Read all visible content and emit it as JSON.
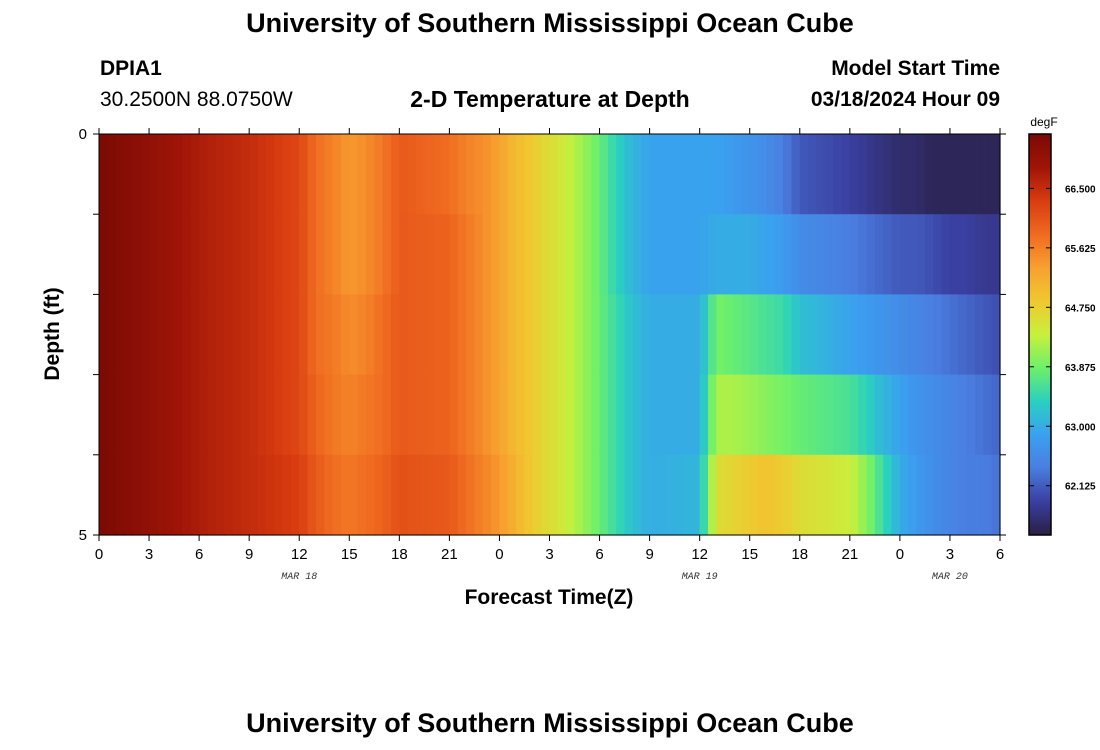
{
  "header": {
    "title": "University of Southern Mississippi Ocean Cube",
    "station_id": "DPIA1",
    "coordinates": "30.2500N  88.0750W",
    "subtitle": "2-D Temperature at Depth",
    "model_start_label": "Model Start Time",
    "model_start_value": "03/18/2024 Hour 09"
  },
  "footer": {
    "title": "University of Southern Mississippi Ocean Cube"
  },
  "chart_data": {
    "type": "heatmap",
    "title": "2-D Temperature at Depth",
    "xlabel": "Forecast Time(Z)",
    "ylabel": "Depth (ft)",
    "x_tick_labels": [
      "0",
      "3",
      "6",
      "9",
      "12",
      "15",
      "18",
      "21",
      "0",
      "3",
      "6",
      "9",
      "12",
      "15",
      "18",
      "21",
      "0",
      "3",
      "6"
    ],
    "x_hours_from_mar18_00z": [
      0,
      3,
      6,
      9,
      12,
      15,
      18,
      21,
      24,
      27,
      30,
      33,
      36,
      39,
      42,
      45,
      48,
      51,
      54
    ],
    "x_range_hours": [
      0,
      54
    ],
    "date_labels": [
      {
        "label": "MAR 18",
        "hour": 12
      },
      {
        "label": "MAR 19",
        "hour": 36
      },
      {
        "label": "MAR 20",
        "hour": 51
      }
    ],
    "y_tick_labels": [
      "0",
      "5"
    ],
    "y_range": [
      0,
      5
    ],
    "depth_bands_ft": [
      0.5,
      1.5,
      2.5,
      3.5,
      4.5
    ],
    "colorbar": {
      "units": "degF",
      "ticks": [
        66.5,
        65.625,
        64.75,
        63.875,
        63.0,
        62.125
      ],
      "tick_labels": [
        "66.500",
        "65.625",
        "64.750",
        "63.875",
        "63.000",
        "62.125"
      ],
      "range": [
        61.4,
        67.3
      ],
      "colors": [
        "#2a1f45",
        "#3a3fa0",
        "#4a7de0",
        "#3aa0f0",
        "#2ad0c0",
        "#6ef06a",
        "#c8f03c",
        "#f0c830",
        "#f8a030",
        "#f06a20",
        "#d83c10",
        "#a01408",
        "#7a0a04"
      ]
    },
    "times_hours": [
      0,
      3,
      6,
      9,
      12,
      13,
      14,
      15,
      16,
      17,
      18,
      21,
      22,
      23,
      24,
      25,
      26,
      27,
      28,
      29,
      30,
      31,
      32,
      33,
      36,
      37,
      38,
      39,
      40,
      41,
      42,
      45,
      46,
      47,
      48,
      49,
      50,
      51,
      52,
      53,
      54
    ],
    "temperature_degF": [
      [
        67.3,
        67.0,
        66.7,
        66.5,
        66.2,
        65.8,
        65.6,
        65.4,
        65.5,
        65.7,
        66.0,
        65.8,
        65.6,
        65.5,
        65.3,
        65.0,
        64.8,
        64.6,
        64.4,
        64.1,
        63.8,
        63.4,
        63.1,
        62.9,
        62.9,
        62.9,
        62.8,
        62.7,
        62.6,
        62.4,
        62.1,
        61.9,
        61.8,
        61.7,
        61.6,
        61.6,
        61.5,
        61.5,
        61.5,
        61.5,
        61.5
      ],
      [
        67.3,
        67.0,
        66.7,
        66.5,
        66.2,
        65.8,
        65.6,
        65.4,
        65.5,
        65.7,
        66.0,
        65.9,
        65.7,
        65.5,
        65.3,
        65.0,
        64.8,
        64.6,
        64.4,
        64.1,
        63.8,
        63.4,
        63.1,
        62.9,
        62.9,
        63.0,
        63.0,
        63.0,
        62.9,
        62.8,
        62.6,
        62.4,
        62.3,
        62.2,
        62.1,
        62.1,
        62.0,
        61.9,
        61.9,
        61.8,
        61.8
      ],
      [
        67.3,
        67.0,
        66.7,
        66.5,
        66.2,
        65.8,
        65.7,
        65.5,
        65.6,
        65.8,
        66.0,
        65.9,
        65.7,
        65.5,
        65.3,
        65.0,
        64.8,
        64.6,
        64.4,
        64.1,
        63.8,
        63.5,
        63.2,
        63.0,
        63.0,
        63.9,
        63.8,
        63.7,
        63.6,
        63.5,
        63.2,
        62.9,
        62.8,
        62.7,
        62.6,
        62.5,
        62.4,
        62.3,
        62.2,
        62.1,
        62.0
      ],
      [
        67.3,
        67.0,
        66.7,
        66.5,
        66.2,
        65.9,
        65.7,
        65.6,
        65.7,
        65.8,
        66.0,
        65.9,
        65.7,
        65.5,
        65.3,
        65.0,
        64.8,
        64.6,
        64.4,
        64.1,
        63.8,
        63.5,
        63.2,
        63.0,
        63.0,
        64.2,
        64.2,
        64.1,
        64.0,
        63.9,
        63.8,
        63.6,
        63.4,
        63.1,
        62.9,
        62.7,
        62.6,
        62.5,
        62.4,
        62.3,
        62.2
      ],
      [
        67.3,
        67.0,
        66.7,
        66.5,
        66.3,
        66.0,
        65.8,
        65.7,
        65.8,
        65.9,
        66.1,
        66.0,
        65.8,
        65.6,
        65.4,
        65.1,
        64.8,
        64.6,
        64.4,
        64.1,
        63.8,
        63.5,
        63.2,
        63.0,
        63.1,
        64.6,
        64.7,
        64.8,
        64.9,
        64.8,
        64.6,
        64.4,
        64.0,
        63.5,
        63.0,
        62.8,
        62.6,
        62.5,
        62.4,
        62.4,
        62.3
      ]
    ]
  }
}
